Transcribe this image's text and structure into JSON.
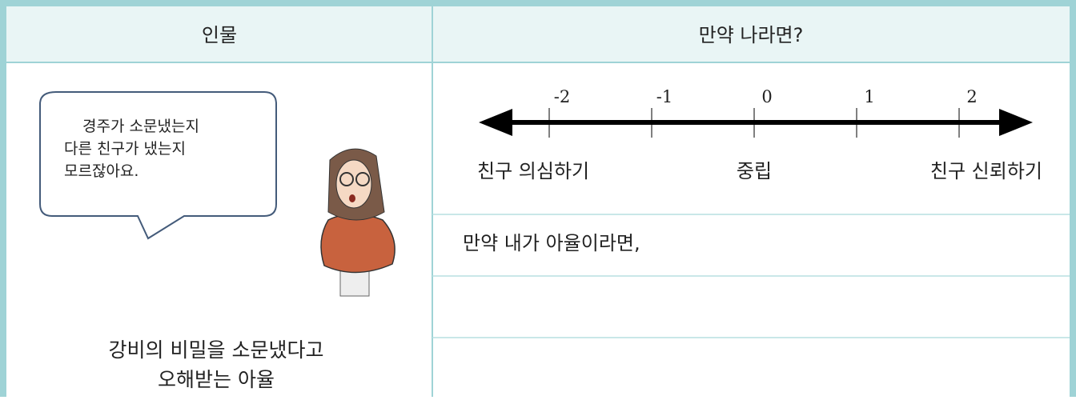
{
  "header": {
    "columns": [
      "인물",
      "만약 나라면?"
    ]
  },
  "character": {
    "speech": [
      "경주가 소문냈는지",
      "다른 친구가 냈는지",
      "모르잖아요."
    ],
    "caption": [
      "강비의 비밀을 소문냈다고",
      "오해받는 아율"
    ]
  },
  "scale": {
    "ticks": [
      "-2",
      "-1",
      "0",
      "1",
      "2"
    ],
    "labels": [
      "친구 의심하기",
      "중립",
      "친구 신뢰하기"
    ]
  },
  "answer": {
    "prompt": "만약 내가 아율이라면,"
  }
}
